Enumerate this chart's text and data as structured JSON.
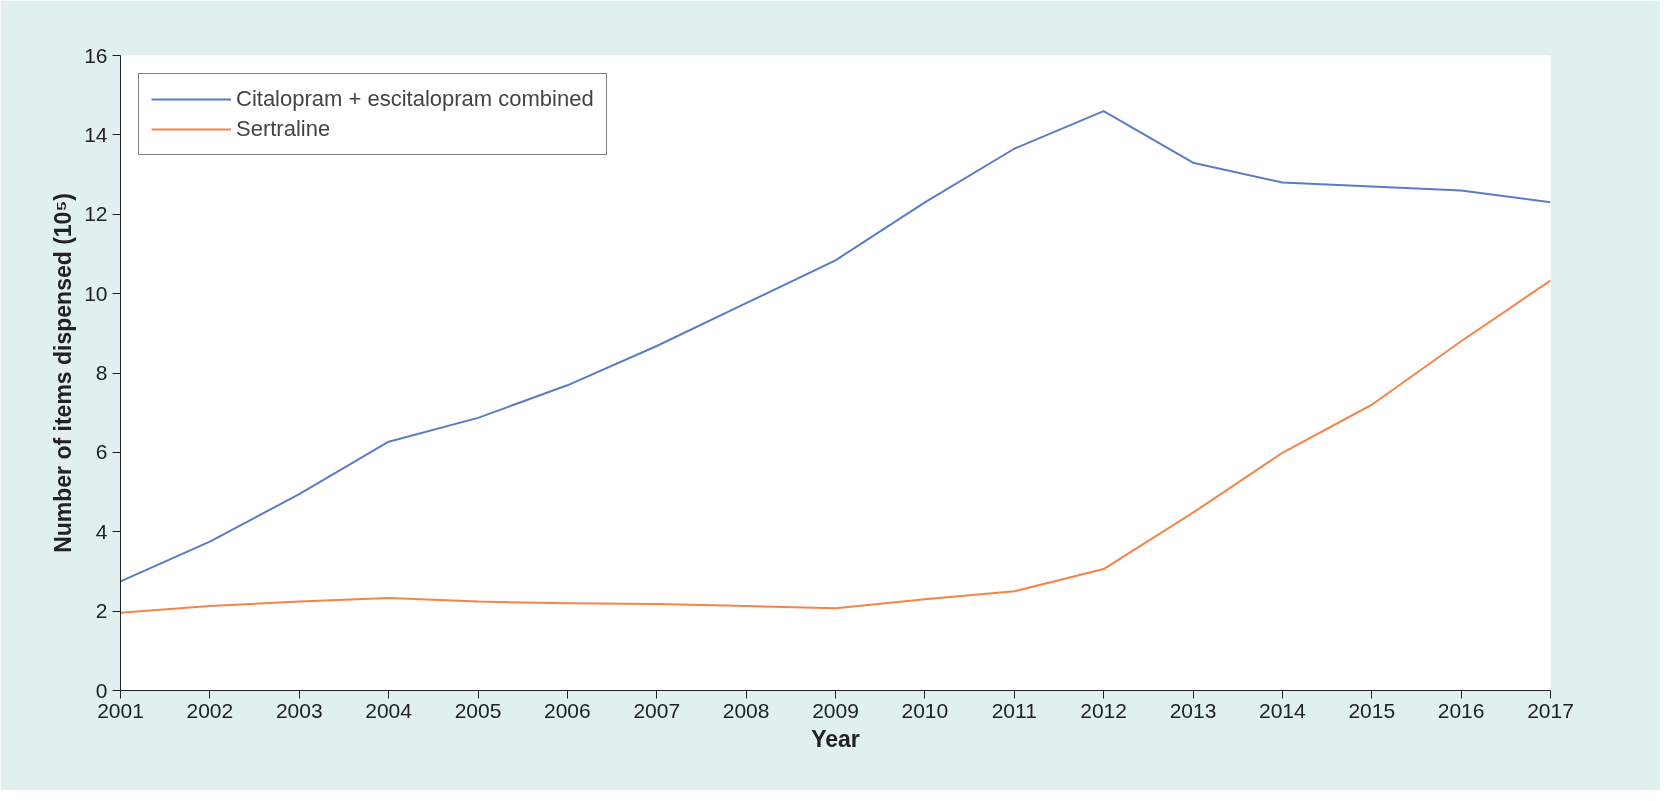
{
  "chart_data": {
    "type": "line",
    "xlabel": "Year",
    "ylabel": "Number of items dispensed (10⁵)",
    "x": [
      2001,
      2002,
      2003,
      2004,
      2005,
      2006,
      2007,
      2008,
      2009,
      2010,
      2011,
      2012,
      2013,
      2014,
      2015,
      2016,
      2017
    ],
    "series": [
      {
        "name": "Citalopram + escitalopram combined",
        "color": "#5b7cc4",
        "values": [
          2.75,
          3.75,
          4.95,
          6.27,
          6.87,
          7.69,
          8.68,
          9.76,
          10.84,
          12.3,
          13.65,
          14.6,
          13.3,
          12.8,
          12.7,
          12.6,
          12.3
        ]
      },
      {
        "name": "Sertraline",
        "color": "#f4844a",
        "values": [
          1.96,
          2.13,
          2.24,
          2.33,
          2.24,
          2.2,
          2.18,
          2.13,
          2.07,
          2.3,
          2.5,
          3.06,
          4.48,
          5.99,
          7.2,
          8.8,
          10.33
        ]
      }
    ],
    "xlim": [
      2001,
      2017
    ],
    "xticks": [
      2001,
      2002,
      2003,
      2004,
      2005,
      2006,
      2007,
      2008,
      2009,
      2010,
      2011,
      2012,
      2013,
      2014,
      2015,
      2016,
      2017
    ],
    "ylim": [
      0,
      16
    ],
    "yticks": [
      0,
      2,
      4,
      6,
      8,
      10,
      12,
      14,
      16
    ],
    "grid": false,
    "legend": "top left",
    "marker": "none",
    "line_style": "solid"
  }
}
